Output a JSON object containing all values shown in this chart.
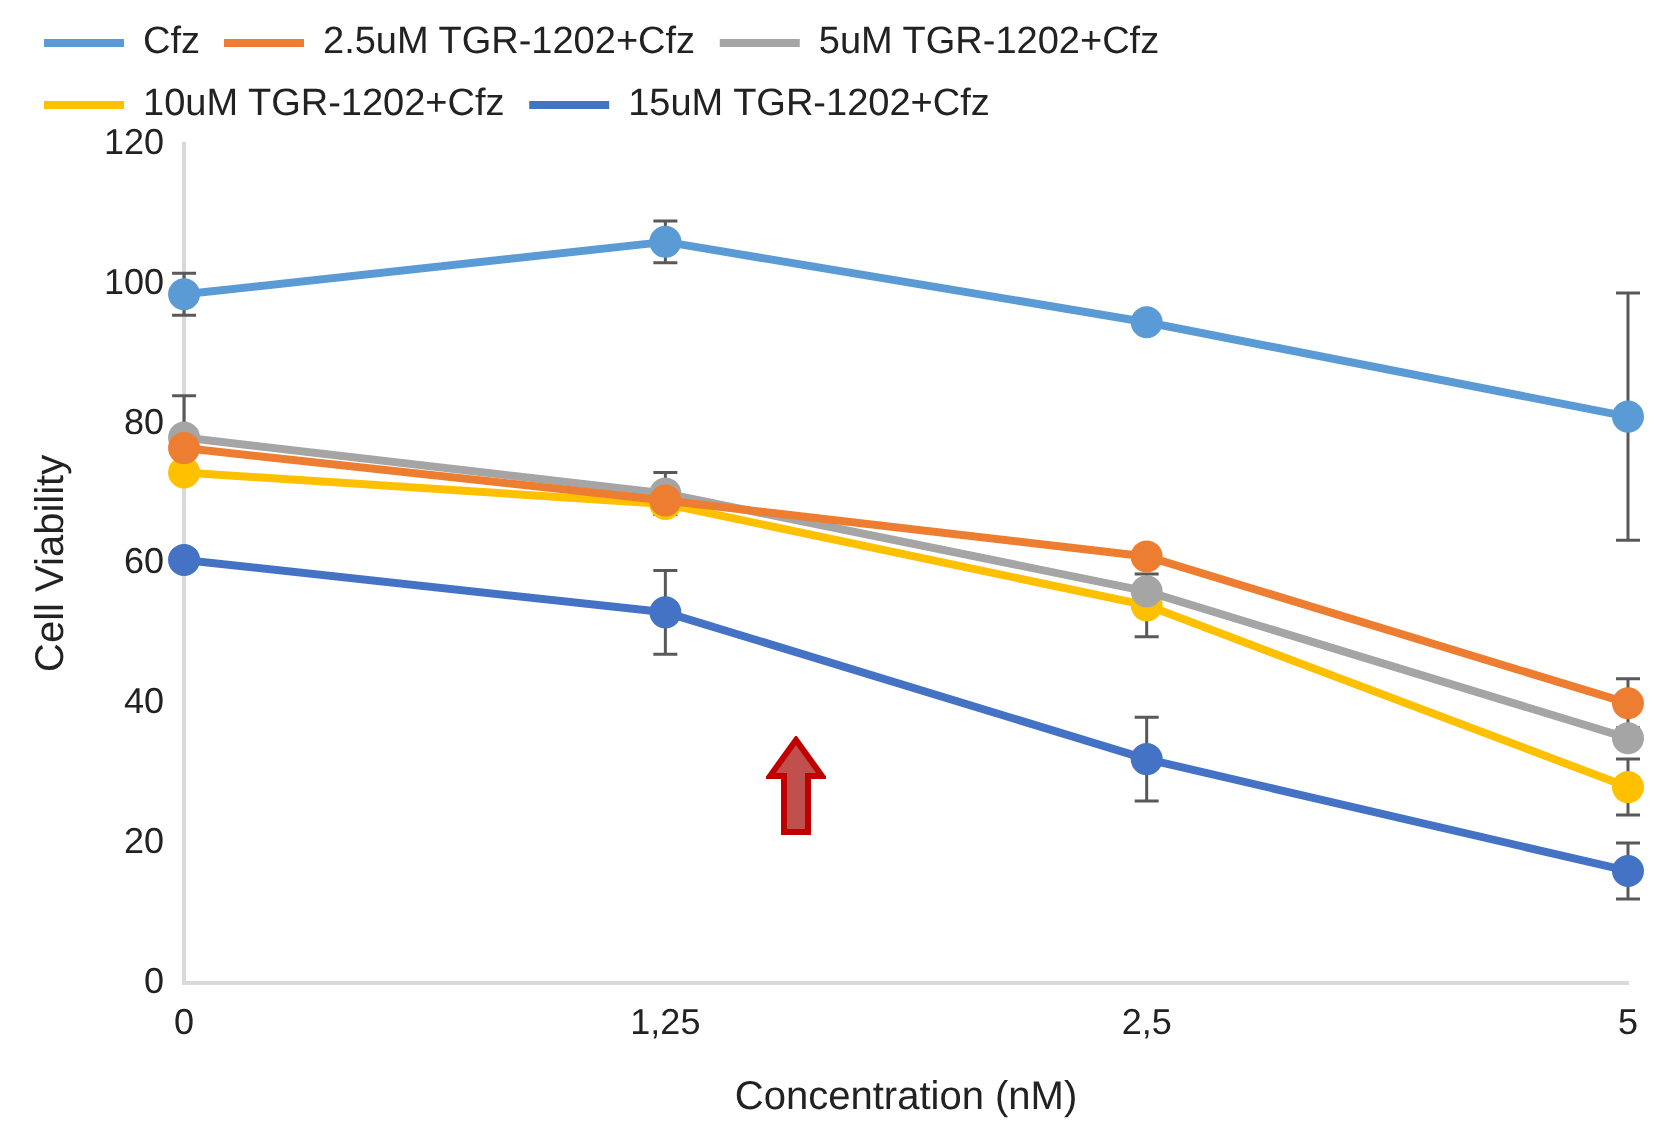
{
  "chart_data": {
    "type": "line",
    "xlabel": "Concentration (nM)",
    "ylabel": "Cell Viability",
    "categories": [
      "0",
      "1,25",
      "2,5",
      "5"
    ],
    "ylim": [
      0,
      120
    ],
    "yticks": [
      0,
      20,
      40,
      60,
      80,
      100,
      120
    ],
    "grid": false,
    "legend": "top",
    "marker": "circle",
    "line_style": "solid",
    "series": [
      {
        "name": "Cfz",
        "color": "#5b9bd5",
        "values": [
          98.5,
          106,
          94.5,
          81
        ],
        "errors": [
          3,
          3,
          null,
          17.7
        ]
      },
      {
        "name": "2.5uM TGR-1202+Cfz",
        "color": "#ed7d31",
        "values": [
          76.5,
          69,
          61,
          40
        ],
        "errors": [
          null,
          null,
          null,
          3.5
        ]
      },
      {
        "name": "5uM TGR-1202+Cfz",
        "color": "#a5a5a5",
        "values": [
          78,
          70,
          56,
          35
        ],
        "errors": [
          6,
          3,
          null,
          null
        ]
      },
      {
        "name": "10uM TGR-1202+Cfz",
        "color": "#ffc000",
        "values": [
          73,
          68.5,
          54,
          28
        ],
        "errors": [
          null,
          null,
          4.5,
          4
        ]
      },
      {
        "name": "15uM TGR-1202+Cfz",
        "color": "#4472c4",
        "values": [
          60.5,
          53,
          32,
          16
        ],
        "errors": [
          null,
          6,
          6,
          4
        ]
      }
    ]
  }
}
